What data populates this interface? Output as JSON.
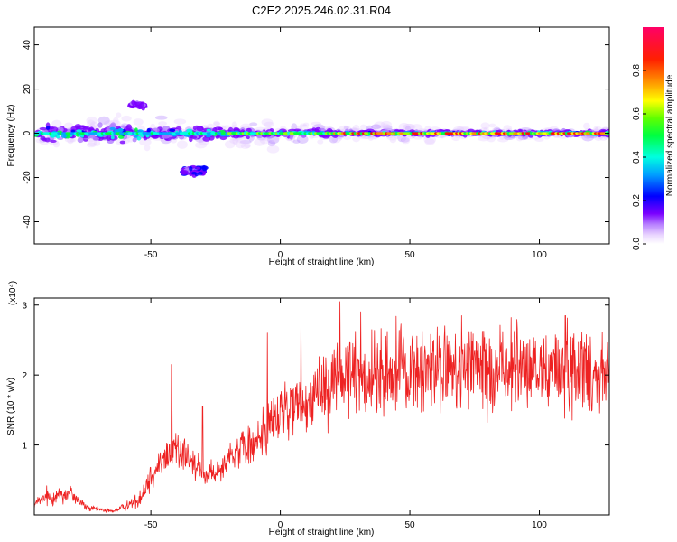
{
  "title": "C2E2.2025.246.02.31.R04",
  "chart_data": [
    {
      "type": "heatmap",
      "xlabel": "Height of straight line (km)",
      "ylabel": "Frequency (Hz)",
      "xlim": [
        -95,
        127
      ],
      "ylim": [
        -50,
        48
      ],
      "xticks": [
        -50,
        0,
        50,
        100
      ],
      "yticks": [
        -40,
        -20,
        0,
        20,
        40
      ],
      "colorbar": {
        "label": "Normalized spectral amplitude",
        "range": [
          0.0,
          1.0
        ],
        "ticks": [
          0.0,
          0.2,
          0.4,
          0.6,
          0.8
        ],
        "tick_labels": [
          "0.0",
          "0.2",
          "0.4",
          "0.6",
          "0.8"
        ],
        "colors": [
          "#ffffff",
          "#d9b3ff",
          "#8000ff",
          "#0000ff",
          "#00bfff",
          "#00ffcc",
          "#00ff00",
          "#ffff00",
          "#ff8000",
          "#ff0000",
          "#ff0066"
        ]
      },
      "features": [
        {
          "name": "main band",
          "freq_hz": 0,
          "x_range": [
            -95,
            127
          ]
        },
        {
          "name": "upper patch",
          "freq_hz": 13,
          "x_range": [
            -58,
            -52
          ]
        },
        {
          "name": "lower patch",
          "freq_hz": -17,
          "x_range": [
            -38,
            -30
          ]
        }
      ]
    },
    {
      "type": "line",
      "xlabel": "Height of straight line (km)",
      "ylabel": "SNR (10 * v/v)",
      "scale_label": "(x10⁴)",
      "xlim": [
        -95,
        127
      ],
      "ylim": [
        0,
        3.1
      ],
      "xticks": [
        -50,
        0,
        50,
        100
      ],
      "yticks": [
        1,
        2,
        3
      ],
      "color": "#ee2222",
      "x": [
        -95,
        -90,
        -85,
        -80,
        -75,
        -70,
        -65,
        -60,
        -55,
        -50,
        -45,
        -40,
        -35,
        -30,
        -25,
        -20,
        -15,
        -10,
        -5,
        0,
        5,
        10,
        15,
        20,
        25,
        30,
        35,
        40,
        45,
        50,
        55,
        60,
        65,
        70,
        75,
        80,
        85,
        90,
        95,
        100,
        105,
        110,
        115,
        120,
        127
      ],
      "values": [
        0.15,
        0.25,
        0.3,
        0.3,
        0.1,
        0.08,
        0.05,
        0.12,
        0.2,
        0.55,
        0.8,
        1.0,
        0.75,
        0.6,
        0.55,
        0.85,
        0.95,
        1.0,
        1.25,
        1.45,
        1.5,
        1.6,
        1.85,
        1.95,
        2.0,
        2.05,
        1.95,
        2.0,
        2.05,
        2.0,
        2.05,
        2.1,
        2.05,
        2.05,
        2.1,
        2.05,
        2.05,
        2.1,
        2.05,
        2.05,
        2.1,
        2.05,
        2.1,
        2.05,
        2.1
      ],
      "peaks": [
        {
          "x": -42,
          "y": 2.15
        },
        {
          "x": -30,
          "y": 1.55
        },
        {
          "x": -5,
          "y": 2.6
        },
        {
          "x": 8,
          "y": 2.9
        },
        {
          "x": 23,
          "y": 3.05
        },
        {
          "x": 70,
          "y": 2.85
        },
        {
          "x": 110,
          "y": 2.85
        }
      ]
    }
  ]
}
